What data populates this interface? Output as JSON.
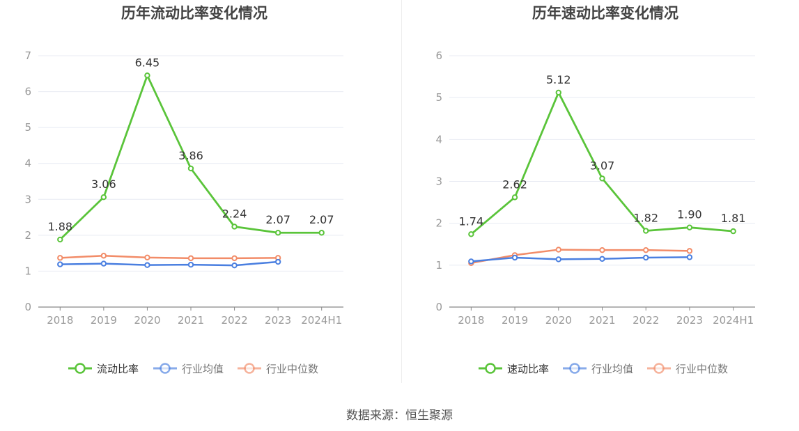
{
  "source": "数据来源：恒生聚源",
  "colors": {
    "main": "#5ac43a",
    "avg": "#4a7fe0",
    "median": "#f28c68",
    "axis": "#999999",
    "grid": "#e8ebf3",
    "text": "#333333"
  },
  "chart_data": [
    {
      "type": "line",
      "title": "历年流动比率变化情况",
      "categories": [
        "2018",
        "2019",
        "2020",
        "2021",
        "2022",
        "2023",
        "2024H1"
      ],
      "ylim": [
        0,
        7
      ],
      "yticks": [
        "0",
        "1",
        "2",
        "3",
        "4",
        "5",
        "6",
        "7"
      ],
      "grid": true,
      "legend_position": "bottom",
      "series": [
        {
          "name": "流动比率",
          "color": "#5ac43a",
          "values": [
            1.88,
            3.06,
            6.45,
            3.86,
            2.24,
            2.07,
            2.07
          ],
          "labels": [
            "1.88",
            "3.06",
            "6.45",
            "3.86",
            "2.24",
            "2.07",
            "2.07"
          ]
        },
        {
          "name": "行业均值",
          "color": "#4a7fe0",
          "values": [
            1.19,
            1.21,
            1.17,
            1.18,
            1.16,
            1.26,
            null
          ]
        },
        {
          "name": "行业中位数",
          "color": "#f28c68",
          "values": [
            1.37,
            1.43,
            1.38,
            1.36,
            1.36,
            1.37,
            null
          ]
        }
      ]
    },
    {
      "type": "line",
      "title": "历年速动比率变化情况",
      "categories": [
        "2018",
        "2019",
        "2020",
        "2021",
        "2022",
        "2023",
        "2024H1"
      ],
      "ylim": [
        0,
        6
      ],
      "yticks": [
        "0",
        "1",
        "2",
        "3",
        "4",
        "5",
        "6"
      ],
      "grid": true,
      "legend_position": "bottom",
      "series": [
        {
          "name": "速动比率",
          "color": "#5ac43a",
          "values": [
            1.74,
            2.62,
            5.12,
            3.07,
            1.82,
            1.9,
            1.81
          ],
          "labels": [
            "1.74",
            "2.62",
            "5.12",
            "3.07",
            "1.82",
            "1.90",
            "1.81"
          ]
        },
        {
          "name": "行业均值",
          "color": "#4a7fe0",
          "values": [
            1.09,
            1.18,
            1.14,
            1.15,
            1.18,
            1.19,
            null
          ]
        },
        {
          "name": "行业中位数",
          "color": "#f28c68",
          "values": [
            1.05,
            1.24,
            1.37,
            1.36,
            1.36,
            1.34,
            null
          ]
        }
      ]
    }
  ]
}
